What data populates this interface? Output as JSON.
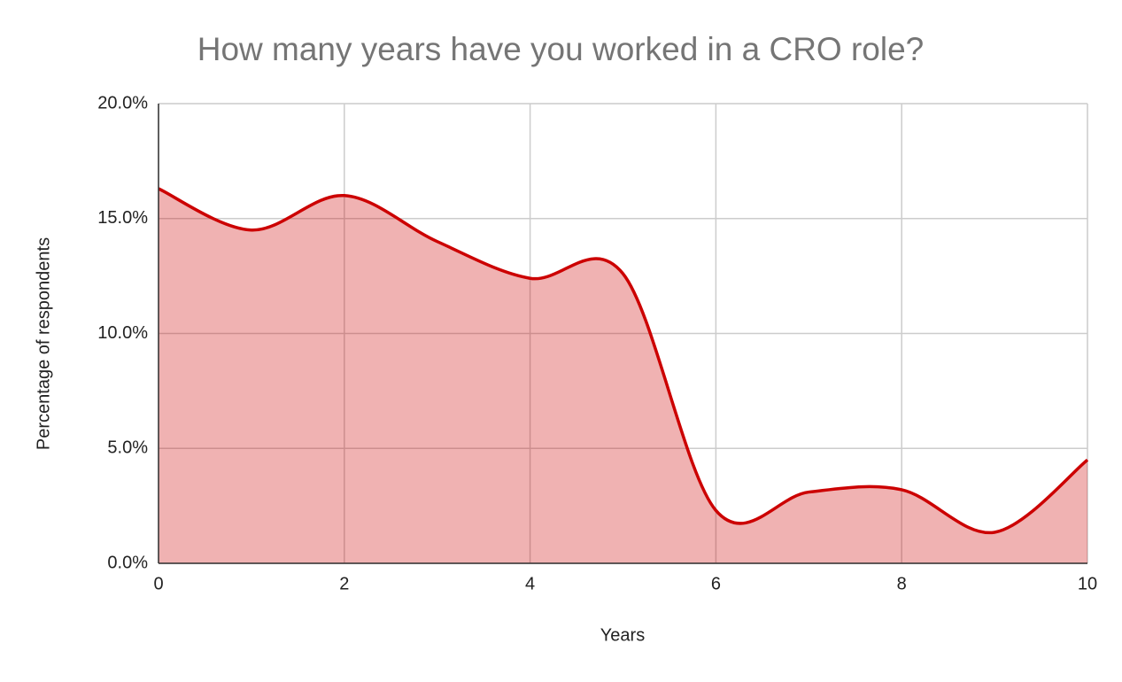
{
  "chart_data": {
    "type": "area",
    "title": "How many years have you worked in a CRO role?",
    "x_label": "Years",
    "y_label": "Percentage of respondents",
    "x": [
      0,
      1,
      2,
      3,
      4,
      5,
      6,
      7,
      8,
      9,
      10
    ],
    "series": [
      {
        "name": "Percentage of respondents",
        "color": "#cc0000",
        "values": [
          16.3,
          14.5,
          16.0,
          14.0,
          12.4,
          12.6,
          2.3,
          3.1,
          3.2,
          1.35,
          4.5
        ]
      }
    ],
    "xlim": [
      0,
      10
    ],
    "xticks": [
      0,
      2,
      4,
      6,
      8,
      10
    ],
    "ylim": [
      0,
      20
    ],
    "yticks": [
      {
        "value": 0,
        "label": "0.0%"
      },
      {
        "value": 5,
        "label": "5.0%"
      },
      {
        "value": 10,
        "label": "10.0%"
      },
      {
        "value": 15,
        "label": "15.0%"
      },
      {
        "value": 20,
        "label": "20.0%"
      }
    ],
    "grid": true,
    "smooth": true
  }
}
